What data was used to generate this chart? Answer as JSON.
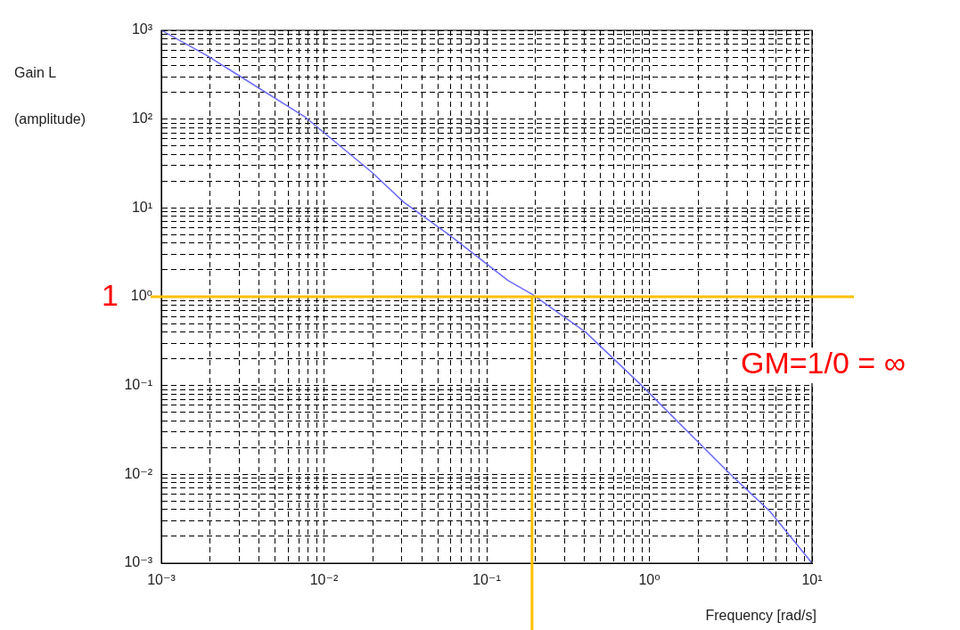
{
  "chart_data": {
    "type": "line",
    "xlabel": "Frequency [rad/s]",
    "ylabel": "Gain L\n(amplitude)",
    "x": [
      0.001,
      0.00193,
      0.00773,
      0.0196,
      0.0309,
      0.0581,
      0.1355,
      0.19,
      0.405,
      0.9,
      2.09,
      3.17,
      5.46,
      10
    ],
    "series": [
      {
        "color": "#6b6bff",
        "values": [
          1000,
          513,
          104,
          25.4,
          11.6,
          5.05,
          1.52,
          1.07,
          0.4,
          0.0995,
          0.0212,
          0.0099,
          0.0039,
          0.001
        ]
      }
    ],
    "log": "xy",
    "xlim": [
      0.001,
      10
    ],
    "ylim": [
      0.001,
      1000
    ],
    "xticks": [
      {
        "value": 0.001,
        "label": "10⁻³"
      },
      {
        "value": 0.002,
        "label": null
      },
      {
        "value": 0.003,
        "label": null
      },
      {
        "value": 0.004,
        "label": null
      },
      {
        "value": 0.005,
        "label": null
      },
      {
        "value": 0.006,
        "label": null
      },
      {
        "value": 0.007,
        "label": null
      },
      {
        "value": 0.008,
        "label": null
      },
      {
        "value": 0.009,
        "label": null
      },
      {
        "value": 0.01,
        "label": "10⁻²"
      },
      {
        "value": 0.02,
        "label": null
      },
      {
        "value": 0.03,
        "label": null
      },
      {
        "value": 0.04,
        "label": null
      },
      {
        "value": 0.05,
        "label": null
      },
      {
        "value": 0.06,
        "label": null
      },
      {
        "value": 0.07,
        "label": null
      },
      {
        "value": 0.08,
        "label": null
      },
      {
        "value": 0.09,
        "label": null
      },
      {
        "value": 0.1,
        "label": "10⁻¹"
      },
      {
        "value": 0.2,
        "label": null
      },
      {
        "value": 0.3,
        "label": null
      },
      {
        "value": 0.4,
        "label": null
      },
      {
        "value": 0.5,
        "label": null
      },
      {
        "value": 0.6,
        "label": null
      },
      {
        "value": 0.7,
        "label": null
      },
      {
        "value": 0.8,
        "label": null
      },
      {
        "value": 0.9,
        "label": null
      },
      {
        "value": 1,
        "label": "10⁰"
      },
      {
        "value": 2,
        "label": null
      },
      {
        "value": 3,
        "label": null
      },
      {
        "value": 4,
        "label": null
      },
      {
        "value": 5,
        "label": null
      },
      {
        "value": 6,
        "label": null
      },
      {
        "value": 7,
        "label": null
      },
      {
        "value": 8,
        "label": null
      },
      {
        "value": 9,
        "label": null
      },
      {
        "value": 10,
        "label": "10¹"
      }
    ],
    "yticks": [
      {
        "value": 0.001,
        "label": "10⁻³"
      },
      {
        "value": 0.002,
        "label": null
      },
      {
        "value": 0.003,
        "label": null
      },
      {
        "value": 0.004,
        "label": null
      },
      {
        "value": 0.005,
        "label": null
      },
      {
        "value": 0.006,
        "label": null
      },
      {
        "value": 0.007,
        "label": null
      },
      {
        "value": 0.008,
        "label": null
      },
      {
        "value": 0.009,
        "label": null
      },
      {
        "value": 0.01,
        "label": "10⁻²"
      },
      {
        "value": 0.02,
        "label": null
      },
      {
        "value": 0.03,
        "label": null
      },
      {
        "value": 0.04,
        "label": null
      },
      {
        "value": 0.05,
        "label": null
      },
      {
        "value": 0.06,
        "label": null
      },
      {
        "value": 0.07,
        "label": null
      },
      {
        "value": 0.08,
        "label": null
      },
      {
        "value": 0.09,
        "label": null
      },
      {
        "value": 0.1,
        "label": "10⁻¹"
      },
      {
        "value": 0.2,
        "label": null
      },
      {
        "value": 0.3,
        "label": null
      },
      {
        "value": 0.4,
        "label": null
      },
      {
        "value": 0.5,
        "label": null
      },
      {
        "value": 0.6,
        "label": null
      },
      {
        "value": 0.7,
        "label": null
      },
      {
        "value": 0.8,
        "label": null
      },
      {
        "value": 0.9,
        "label": null
      },
      {
        "value": 1,
        "label": "10⁰"
      },
      {
        "value": 2,
        "label": null
      },
      {
        "value": 3,
        "label": null
      },
      {
        "value": 4,
        "label": null
      },
      {
        "value": 5,
        "label": null
      },
      {
        "value": 6,
        "label": null
      },
      {
        "value": 7,
        "label": null
      },
      {
        "value": 8,
        "label": null
      },
      {
        "value": 9,
        "label": null
      },
      {
        "value": 10,
        "label": "10¹"
      },
      {
        "value": 20,
        "label": null
      },
      {
        "value": 30,
        "label": null
      },
      {
        "value": 40,
        "label": null
      },
      {
        "value": 50,
        "label": null
      },
      {
        "value": 60,
        "label": null
      },
      {
        "value": 70,
        "label": null
      },
      {
        "value": 80,
        "label": null
      },
      {
        "value": 90,
        "label": null
      },
      {
        "value": 100,
        "label": "10²"
      },
      {
        "value": 200,
        "label": null
      },
      {
        "value": 300,
        "label": null
      },
      {
        "value": 400,
        "label": null
      },
      {
        "value": 500,
        "label": null
      },
      {
        "value": 600,
        "label": null
      },
      {
        "value": 700,
        "label": null
      },
      {
        "value": 800,
        "label": null
      },
      {
        "value": 900,
        "label": null
      },
      {
        "value": 1000,
        "label": "10³"
      }
    ],
    "grid": true,
    "legend": false,
    "marker": "none",
    "line_style": "solid",
    "ref_lines": [
      {
        "axis": "y",
        "value": 1,
        "label": "1",
        "color": "#ffc000"
      },
      {
        "axis": "x",
        "value": 0.19,
        "color": "#ffc000"
      }
    ],
    "annotations": [
      "GM=1/0 = ∞"
    ]
  }
}
